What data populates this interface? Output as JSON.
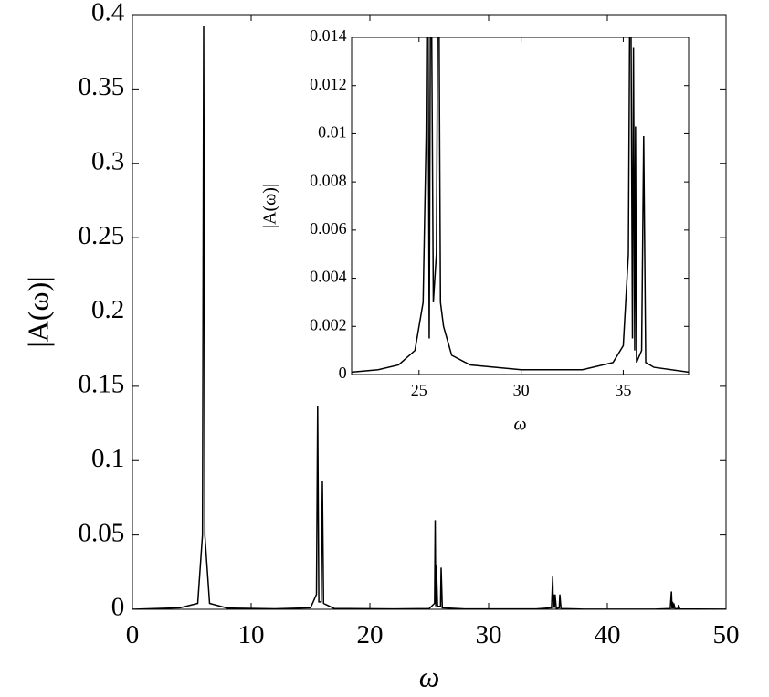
{
  "chart_data": [
    {
      "type": "line",
      "xlabel": "ω",
      "ylabel": "|A(ω)|",
      "x": [
        0,
        4,
        5.5,
        5.9,
        6.0,
        6.1,
        6.5,
        8,
        12,
        15,
        15.5,
        15.6,
        15.7,
        15.9,
        16.0,
        16.1,
        17,
        22,
        25,
        25.45,
        25.5,
        25.55,
        25.6,
        25.7,
        25.95,
        26.0,
        26.1,
        28,
        34,
        35.3,
        35.4,
        35.45,
        35.5,
        35.55,
        35.6,
        35.7,
        35.95,
        36.0,
        36.1,
        38,
        44,
        45.3,
        45.4,
        45.45,
        45.5,
        45.55,
        45.6,
        45.7,
        45.95,
        46.0,
        46.1,
        50
      ],
      "series": [
        {
          "color": "#000000",
          "values": [
            0,
            0.001,
            0.004,
            0.05,
            0.392,
            0.05,
            0.004,
            0.0008,
            0.0003,
            0.001,
            0.01,
            0.137,
            0.005,
            0.005,
            0.086,
            0.004,
            0.0005,
            0.0002,
            0.0005,
            0.004,
            0.06,
            0.002,
            0.03,
            0.002,
            0.002,
            0.028,
            0.001,
            0.0002,
            0.0002,
            0.001,
            0.022,
            0.001,
            0.01,
            0.001,
            0.01,
            0.0005,
            0.001,
            0.01,
            0.0005,
            0.0001,
            0.0001,
            0.0005,
            0.012,
            0.0005,
            0.005,
            0.0005,
            0.004,
            0.0003,
            0.0005,
            0.003,
            0.0002,
            0.0001
          ]
        }
      ],
      "xlim": [
        0,
        50
      ],
      "ylim": [
        0,
        0.4
      ],
      "xticks": [
        0,
        10,
        20,
        30,
        40,
        50
      ],
      "yticks": [
        0,
        0.05,
        0.1,
        0.15,
        0.2,
        0.25,
        0.3,
        0.35,
        0.4
      ]
    },
    {
      "type": "line",
      "xlabel": "ω",
      "ylabel": "|A(ω)|",
      "x": [
        21.7,
        23,
        24,
        24.8,
        25.2,
        25.35,
        25.42,
        25.5,
        25.58,
        25.7,
        25.85,
        25.95,
        26.05,
        26.2,
        26.6,
        27.5,
        30,
        33,
        34.5,
        35,
        35.25,
        35.35,
        35.45,
        35.5,
        35.56,
        35.6,
        35.65,
        35.9,
        36.0,
        36.1,
        36.5,
        38.2
      ],
      "series": [
        {
          "color": "#000000",
          "values": [
            0.0001,
            0.0002,
            0.0004,
            0.001,
            0.003,
            0.01,
            0.02,
            0.0015,
            0.02,
            0.003,
            0.005,
            0.02,
            0.003,
            0.002,
            0.0008,
            0.0004,
            0.0002,
            0.0002,
            0.0005,
            0.0012,
            0.005,
            0.02,
            0.0015,
            0.0136,
            0.001,
            0.0103,
            0.0005,
            0.001,
            0.0099,
            0.0005,
            0.0003,
            0.0001
          ]
        }
      ],
      "xlim": [
        21.7,
        38.2
      ],
      "ylim": [
        0,
        0.014
      ],
      "xticks": [
        25,
        30,
        35
      ],
      "yticks": [
        0,
        0.002,
        0.004,
        0.006,
        0.008,
        0.01,
        0.012,
        0.014
      ]
    }
  ]
}
